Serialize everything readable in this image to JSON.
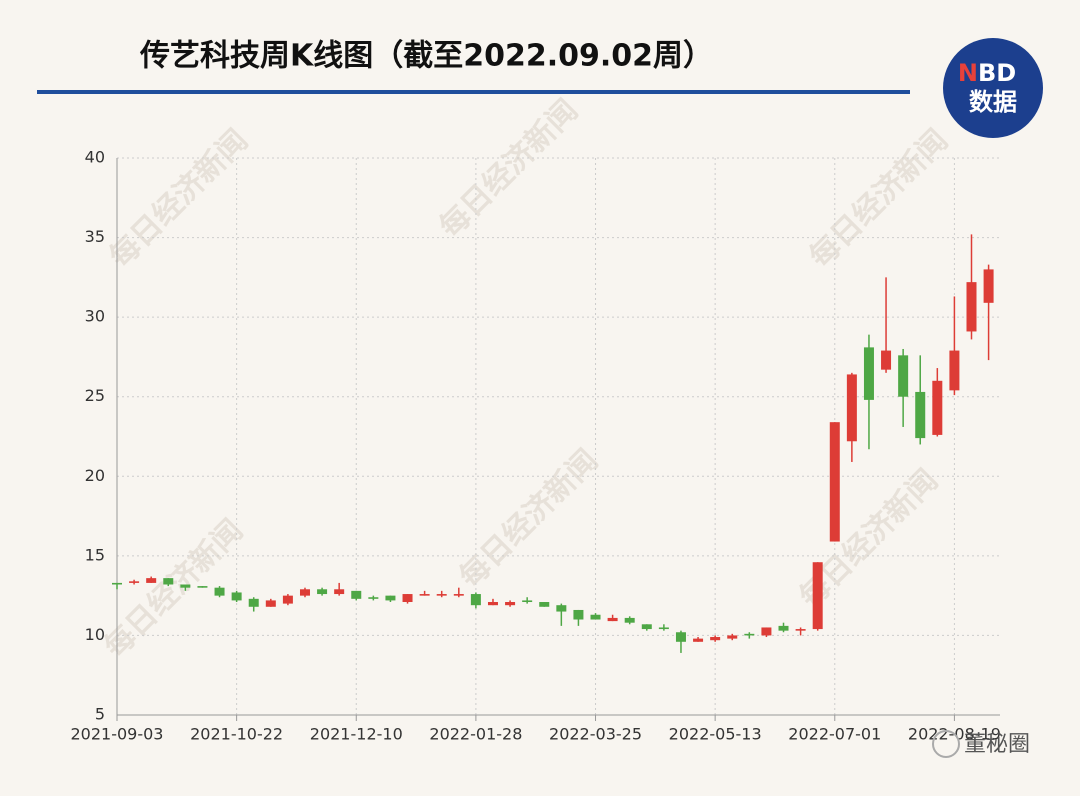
{
  "chart_data": {
    "type": "candlestick",
    "title": "传艺科技周K线图（截至2022.09.02周）",
    "logo": {
      "first_letter": "N",
      "rest": "BD",
      "second_line": "数据"
    },
    "watermark": "每日经济新闻",
    "corner_mark": "董秘圈",
    "categories": [
      "2021-09-03",
      null,
      null,
      null,
      null,
      null,
      null,
      "2021-10-22",
      null,
      null,
      null,
      null,
      null,
      null,
      "2021-12-10",
      null,
      null,
      null,
      null,
      null,
      null,
      "2022-01-28",
      null,
      null,
      null,
      null,
      null,
      null,
      "2022-03-25",
      null,
      null,
      null,
      null,
      null,
      null,
      "2022-05-13",
      null,
      null,
      null,
      null,
      null,
      null,
      "2022-07-01",
      null,
      null,
      null,
      null,
      null,
      null,
      "2022-08-19",
      null,
      null
    ],
    "series": [
      {
        "name": "open",
        "values": [
          13.3,
          13.3,
          13.3,
          13.6,
          13.2,
          13.1,
          13.0,
          12.7,
          12.3,
          11.8,
          12.0,
          12.5,
          12.9,
          12.6,
          12.8,
          12.4,
          12.5,
          12.1,
          12.5,
          12.5,
          12.5,
          12.6,
          11.9,
          11.9,
          12.2,
          12.1,
          11.9,
          11.6,
          11.3,
          10.9,
          11.1,
          10.7,
          10.5,
          10.2,
          9.6,
          9.7,
          9.8,
          10.1,
          10.0,
          10.6,
          10.3,
          10.4,
          15.9,
          22.2,
          28.1,
          26.7,
          27.6,
          25.3,
          22.6,
          25.4,
          29.1,
          30.9
        ]
      },
      {
        "name": "high",
        "values": [
          13.3,
          13.5,
          13.7,
          13.6,
          13.2,
          13.1,
          13.1,
          12.8,
          12.4,
          12.3,
          12.6,
          13.0,
          13.0,
          13.3,
          12.8,
          12.5,
          12.5,
          12.6,
          12.8,
          12.8,
          13.0,
          12.7,
          12.3,
          12.2,
          12.4,
          12.1,
          12.0,
          11.6,
          11.4,
          11.3,
          11.2,
          10.7,
          10.7,
          10.3,
          9.9,
          10.0,
          10.1,
          10.2,
          10.5,
          10.8,
          10.5,
          14.6,
          23.4,
          26.5,
          28.9,
          32.5,
          28.0,
          27.6,
          26.8,
          31.3,
          35.2,
          33.3
        ]
      },
      {
        "name": "low",
        "values": [
          12.9,
          13.2,
          13.3,
          13.1,
          12.8,
          13.0,
          12.4,
          12.1,
          11.5,
          11.8,
          11.9,
          12.4,
          12.5,
          12.5,
          12.2,
          12.2,
          12.1,
          12.0,
          12.5,
          12.4,
          12.4,
          11.7,
          11.9,
          11.8,
          12.0,
          11.8,
          10.6,
          10.6,
          11.0,
          10.9,
          10.7,
          10.3,
          10.3,
          8.9,
          9.6,
          9.6,
          9.7,
          9.8,
          9.9,
          10.2,
          10.0,
          10.3,
          15.9,
          20.9,
          21.7,
          26.5,
          23.1,
          22.0,
          22.5,
          25.1,
          28.6,
          27.3
        ]
      },
      {
        "name": "close",
        "values": [
          13.2,
          13.4,
          13.6,
          13.2,
          13.0,
          13.0,
          12.5,
          12.2,
          11.8,
          12.2,
          12.5,
          12.9,
          12.6,
          12.9,
          12.3,
          12.3,
          12.2,
          12.6,
          12.6,
          12.6,
          12.6,
          11.9,
          12.1,
          12.1,
          12.1,
          11.8,
          11.5,
          11.0,
          11.0,
          11.1,
          10.8,
          10.4,
          10.4,
          9.6,
          9.8,
          9.9,
          10.0,
          10.0,
          10.5,
          10.3,
          10.4,
          14.6,
          23.4,
          26.4,
          24.8,
          27.9,
          25.0,
          22.4,
          26.0,
          27.9,
          32.2,
          33.0
        ]
      }
    ],
    "up_color": "#dd3c36",
    "down_color": "#4ea745",
    "ylim": [
      5,
      40
    ],
    "yticks": [
      5,
      10,
      15,
      20,
      25,
      30,
      35,
      40
    ],
    "grid": true
  }
}
